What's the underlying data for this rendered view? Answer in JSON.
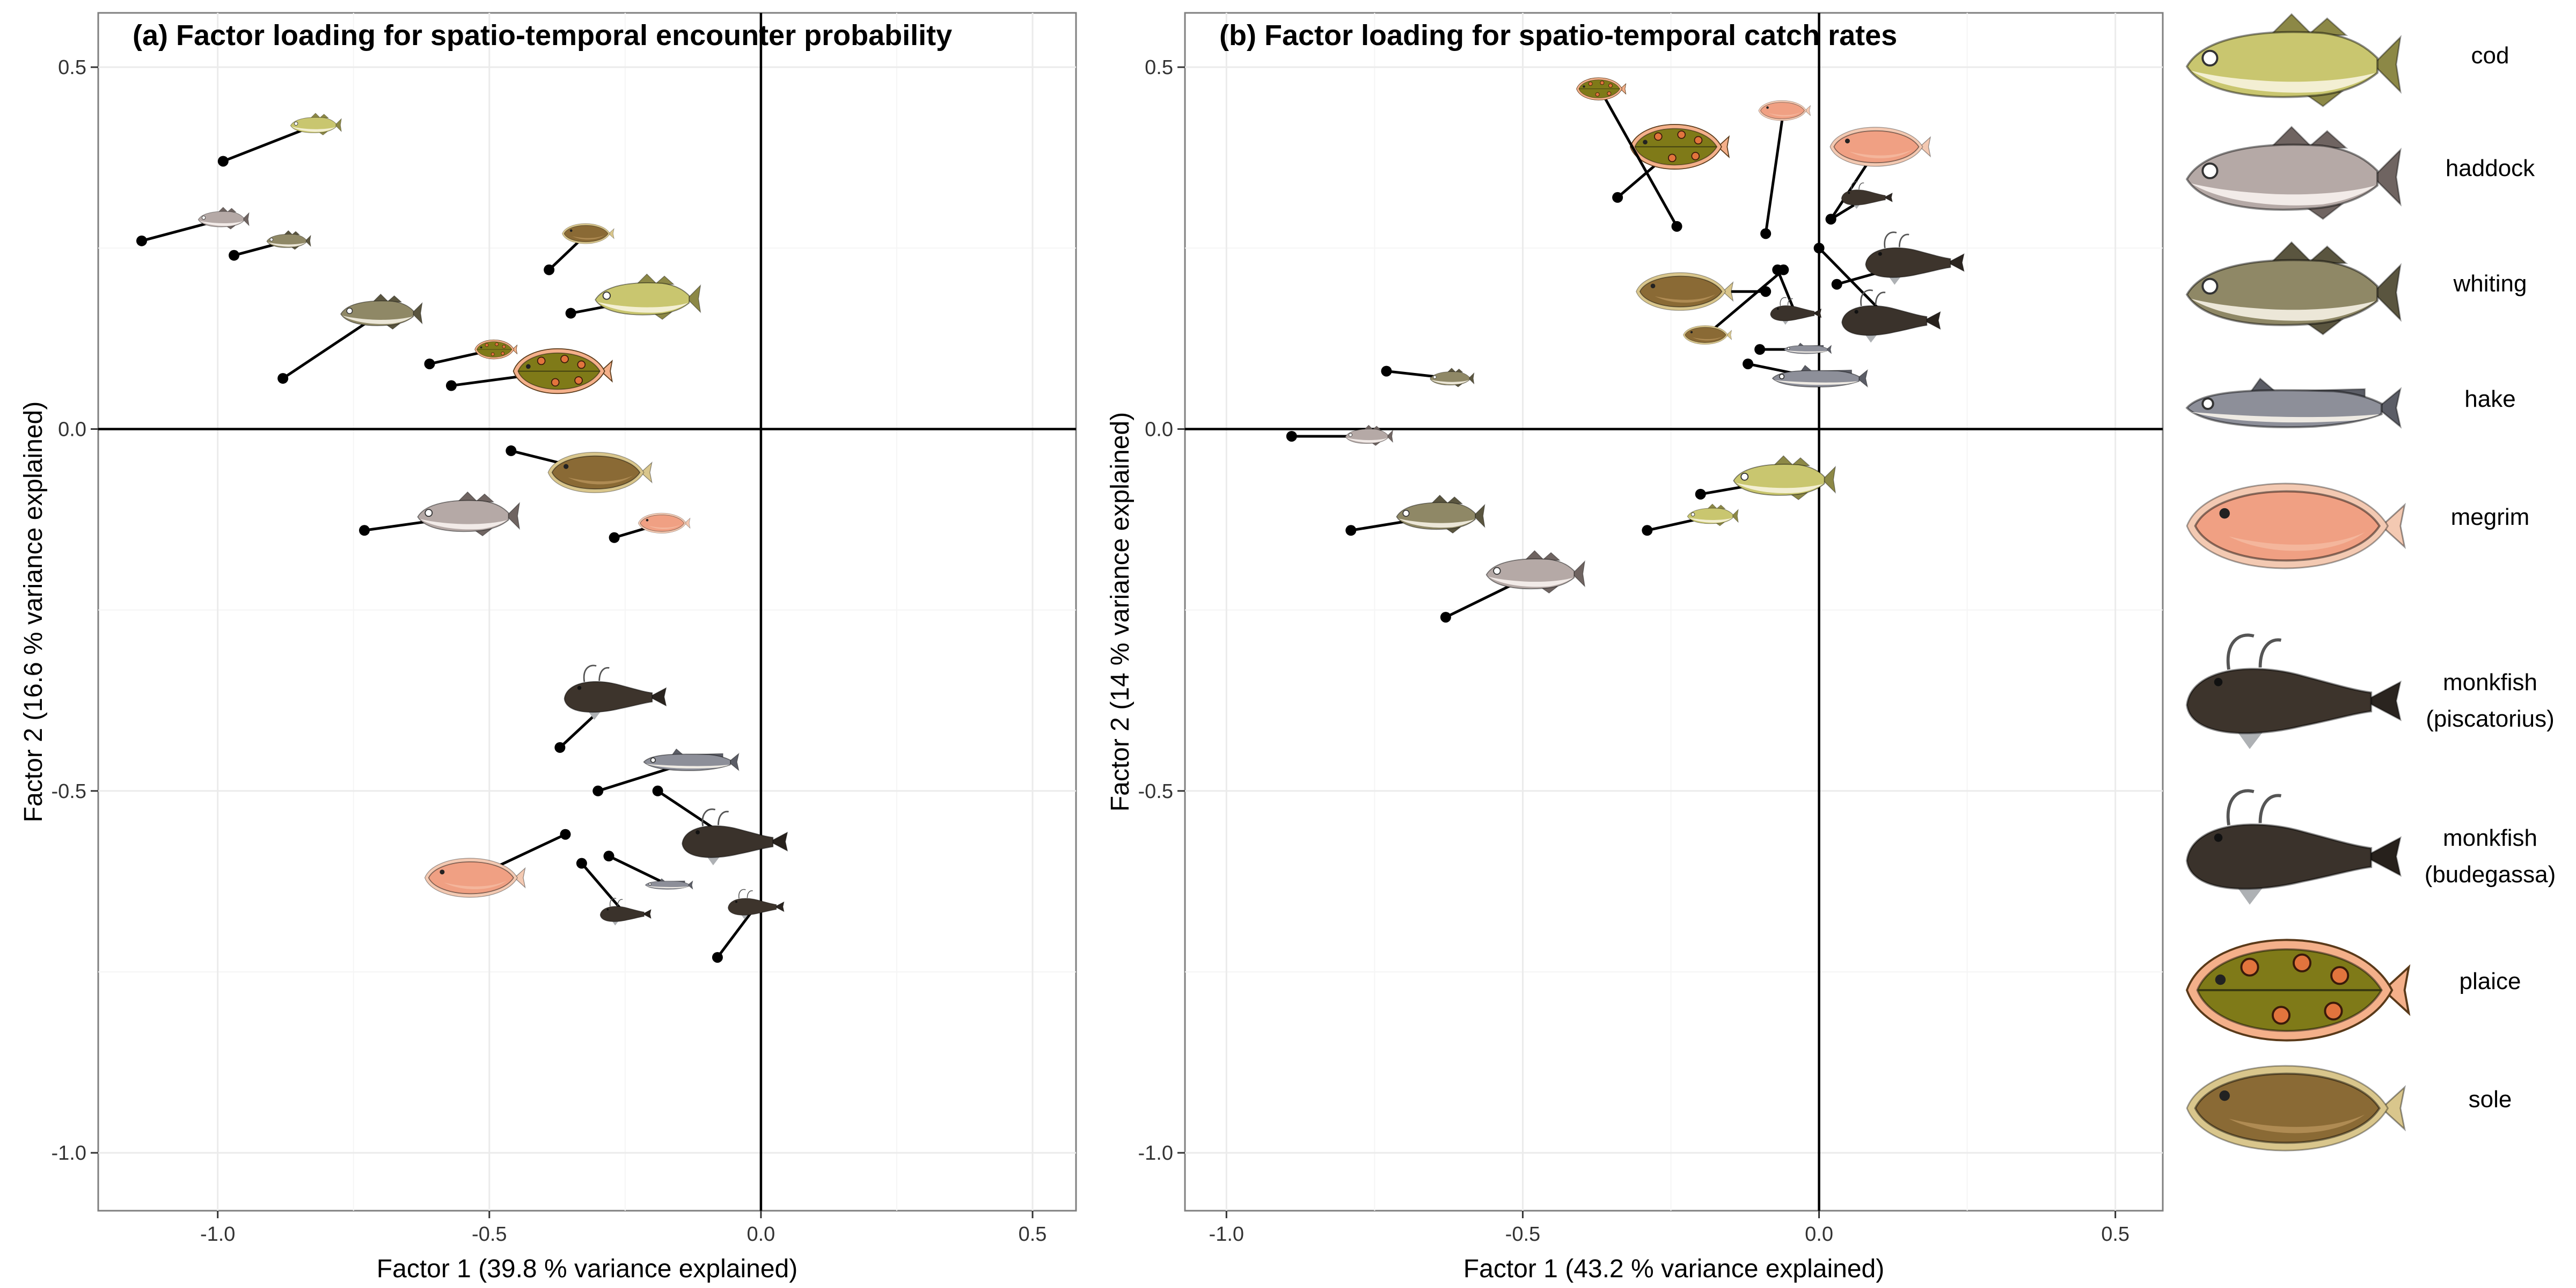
{
  "species": [
    {
      "key": "cod",
      "label": "cod",
      "label2": "",
      "color": "#c9c66f",
      "belly": "#f3efd3",
      "fin": "#8c8846",
      "kind": "round"
    },
    {
      "key": "haddock",
      "label": "haddock",
      "label2": "",
      "color": "#b5a9a6",
      "belly": "#f2ebe8",
      "fin": "#6f6461",
      "kind": "round"
    },
    {
      "key": "whiting",
      "label": "whiting",
      "label2": "",
      "color": "#8f8866",
      "belly": "#ece7d8",
      "fin": "#5a553f",
      "kind": "round"
    },
    {
      "key": "hake",
      "label": "hake",
      "label2": "",
      "color": "#8d8f99",
      "belly": "#eeeae3",
      "fin": "#5b5d66",
      "kind": "slender"
    },
    {
      "key": "megrim",
      "label": "megrim",
      "label2": "",
      "color": "#f0a083",
      "belly": "#f7c4ae",
      "fin": "#f3c9b2",
      "kind": "flat"
    },
    {
      "key": "monk_pisc",
      "label": "monkfish",
      "label2": "(piscatorius)",
      "color": "#3d342c",
      "belly": "#aeb1b4",
      "fin": "#2a241f",
      "kind": "monk"
    },
    {
      "key": "monk_bude",
      "label": "monkfish",
      "label2": "(budegassa)",
      "color": "#3a322b",
      "belly": "#aeb1b4",
      "fin": "#27211c",
      "kind": "monk"
    },
    {
      "key": "plaice",
      "label": "plaice",
      "label2": "",
      "color": "#7f7a18",
      "belly": "#e2743d",
      "fin": "#f4b08a",
      "kind": "plaice"
    },
    {
      "key": "sole",
      "label": "sole",
      "label2": "",
      "color": "#8a6a35",
      "belly": "#c8a267",
      "fin": "#d9c68c",
      "kind": "flat"
    }
  ],
  "panels": [
    {
      "id": "a",
      "title": "(a) Factor loading for spatio-temporal encounter probability",
      "xlabel": "Factor 1 (39.8 % variance explained)",
      "ylabel": "Factor 2 (16.6 % variance explained)",
      "xlim": [
        -1.22,
        0.58
      ],
      "ylim": [
        -1.08,
        0.575
      ],
      "xticks": [
        {
          "v": -1.0,
          "label": "-1.0"
        },
        {
          "v": -0.5,
          "label": "-0.5"
        },
        {
          "v": 0.0,
          "label": "0.0"
        },
        {
          "v": 0.5,
          "label": "0.5"
        }
      ],
      "yticks": [
        {
          "v": 0.5,
          "label": "0.5"
        },
        {
          "v": 0.0,
          "label": "0.0"
        },
        {
          "v": -0.5,
          "label": "-0.5"
        },
        {
          "v": -1.0,
          "label": "-1.0"
        }
      ],
      "points": [
        {
          "species": "cod",
          "x": -0.35,
          "y": 0.16,
          "ix": -0.21,
          "iy": 0.18,
          "s": 0.62
        },
        {
          "species": "cod",
          "x": -0.99,
          "y": 0.37,
          "ix": -0.82,
          "iy": 0.42,
          "s": 0.3
        },
        {
          "species": "haddock",
          "x": -0.73,
          "y": -0.14,
          "ix": -0.54,
          "iy": -0.12,
          "s": 0.6
        },
        {
          "species": "haddock",
          "x": -1.14,
          "y": 0.26,
          "ix": -0.99,
          "iy": 0.29,
          "s": 0.3
        },
        {
          "species": "whiting",
          "x": -0.88,
          "y": 0.07,
          "ix": -0.7,
          "iy": 0.16,
          "s": 0.48
        },
        {
          "species": "whiting",
          "x": -0.97,
          "y": 0.24,
          "ix": -0.87,
          "iy": 0.26,
          "s": 0.26
        },
        {
          "species": "hake",
          "x": -0.3,
          "y": -0.5,
          "ix": -0.13,
          "iy": -0.46,
          "s": 0.56
        },
        {
          "species": "hake",
          "x": -0.28,
          "y": -0.59,
          "ix": -0.17,
          "iy": -0.63,
          "s": 0.28
        },
        {
          "species": "megrim",
          "x": -0.36,
          "y": -0.56,
          "ix": -0.53,
          "iy": -0.62,
          "s": 0.58
        },
        {
          "species": "megrim",
          "x": -0.27,
          "y": -0.15,
          "ix": -0.18,
          "iy": -0.13,
          "s": 0.3
        },
        {
          "species": "monk_pisc",
          "x": -0.37,
          "y": -0.44,
          "ix": -0.27,
          "iy": -0.37,
          "s": 0.6
        },
        {
          "species": "monk_pisc",
          "x": -0.08,
          "y": -0.73,
          "ix": -0.01,
          "iy": -0.66,
          "s": 0.33
        },
        {
          "species": "monk_bude",
          "x": -0.19,
          "y": -0.5,
          "ix": -0.05,
          "iy": -0.57,
          "s": 0.62
        },
        {
          "species": "monk_bude",
          "x": -0.33,
          "y": -0.6,
          "ix": -0.25,
          "iy": -0.67,
          "s": 0.3
        },
        {
          "species": "plaice",
          "x": -0.57,
          "y": 0.06,
          "ix": -0.37,
          "iy": 0.08,
          "s": 0.56
        },
        {
          "species": "plaice",
          "x": -0.61,
          "y": 0.09,
          "ix": -0.49,
          "iy": 0.11,
          "s": 0.24
        },
        {
          "species": "sole",
          "x": -0.46,
          "y": -0.03,
          "ix": -0.3,
          "iy": -0.06,
          "s": 0.6
        },
        {
          "species": "sole",
          "x": -0.39,
          "y": 0.22,
          "ix": -0.32,
          "iy": 0.27,
          "s": 0.3
        }
      ]
    },
    {
      "id": "b",
      "title": "(b) Factor loading for spatio-temporal catch rates",
      "xlabel": "Factor 1 (43.2 % variance explained)",
      "ylabel": "Factor 2 (14 % variance explained)",
      "xlim": [
        -1.07,
        0.58
      ],
      "ylim": [
        -1.08,
        0.575
      ],
      "xticks": [
        {
          "v": -1.0,
          "label": "-1.0"
        },
        {
          "v": -0.5,
          "label": "-0.5"
        },
        {
          "v": 0.0,
          "label": "0.0"
        },
        {
          "v": 0.5,
          "label": "0.5"
        }
      ],
      "yticks": [
        {
          "v": 0.5,
          "label": "0.5"
        },
        {
          "v": 0.0,
          "label": "0.0"
        },
        {
          "v": -0.5,
          "label": "-0.5"
        },
        {
          "v": -1.0,
          "label": "-1.0"
        }
      ],
      "points": [
        {
          "species": "cod",
          "x": -0.2,
          "y": -0.09,
          "ix": -0.06,
          "iy": -0.07,
          "s": 0.6
        },
        {
          "species": "cod",
          "x": -0.29,
          "y": -0.14,
          "ix": -0.18,
          "iy": -0.12,
          "s": 0.3
        },
        {
          "species": "haddock",
          "x": -0.63,
          "y": -0.26,
          "ix": -0.48,
          "iy": -0.2,
          "s": 0.58
        },
        {
          "species": "haddock",
          "x": -0.89,
          "y": -0.01,
          "ix": -0.76,
          "iy": -0.01,
          "s": 0.28
        },
        {
          "species": "whiting",
          "x": -0.79,
          "y": -0.14,
          "ix": -0.64,
          "iy": -0.12,
          "s": 0.52
        },
        {
          "species": "whiting",
          "x": -0.73,
          "y": 0.08,
          "ix": -0.62,
          "iy": 0.07,
          "s": 0.26
        },
        {
          "species": "hake",
          "x": -0.12,
          "y": 0.09,
          "ix": 0.0,
          "iy": 0.07,
          "s": 0.56
        },
        {
          "species": "hake",
          "x": -0.1,
          "y": 0.11,
          "ix": -0.02,
          "iy": 0.11,
          "s": 0.28
        },
        {
          "species": "megrim",
          "x": 0.02,
          "y": 0.29,
          "ix": 0.1,
          "iy": 0.39,
          "s": 0.58
        },
        {
          "species": "megrim",
          "x": -0.09,
          "y": 0.27,
          "ix": -0.06,
          "iy": 0.44,
          "s": 0.3
        },
        {
          "species": "monk_pisc",
          "x": 0.03,
          "y": 0.2,
          "ix": 0.16,
          "iy": 0.23,
          "s": 0.58
        },
        {
          "species": "monk_pisc",
          "x": 0.02,
          "y": 0.29,
          "ix": 0.08,
          "iy": 0.32,
          "s": 0.3
        },
        {
          "species": "monk_bude",
          "x": 0.0,
          "y": 0.25,
          "ix": 0.12,
          "iy": 0.15,
          "s": 0.58
        },
        {
          "species": "monk_bude",
          "x": -0.07,
          "y": 0.22,
          "ix": -0.04,
          "iy": 0.16,
          "s": 0.3
        },
        {
          "species": "plaice",
          "x": -0.34,
          "y": 0.32,
          "ix": -0.24,
          "iy": 0.39,
          "s": 0.56
        },
        {
          "species": "plaice",
          "x": -0.24,
          "y": 0.28,
          "ix": -0.37,
          "iy": 0.47,
          "s": 0.28
        },
        {
          "species": "sole",
          "x": -0.09,
          "y": 0.19,
          "ix": -0.23,
          "iy": 0.19,
          "s": 0.56
        },
        {
          "species": "sole",
          "x": -0.06,
          "y": 0.22,
          "ix": -0.19,
          "iy": 0.13,
          "s": 0.28
        }
      ]
    }
  ],
  "chart_data": [
    {
      "type": "scatter",
      "title": "(a) Factor loading for spatio-temporal encounter probability",
      "xlabel": "Factor 1 (39.8 % variance explained)",
      "ylabel": "Factor 2 (16.6 % variance explained)",
      "xlim": [
        -1.22,
        0.58
      ],
      "ylim": [
        -1.08,
        0.575
      ],
      "grid": true,
      "legend": "right",
      "series": [
        {
          "name": "cod",
          "points": [
            [
              -0.35,
              0.16
            ],
            [
              -0.99,
              0.37
            ]
          ]
        },
        {
          "name": "haddock",
          "points": [
            [
              -0.73,
              -0.14
            ],
            [
              -1.14,
              0.26
            ]
          ]
        },
        {
          "name": "whiting",
          "points": [
            [
              -0.88,
              0.07
            ],
            [
              -0.97,
              0.24
            ]
          ]
        },
        {
          "name": "hake",
          "points": [
            [
              -0.3,
              -0.5
            ],
            [
              -0.28,
              -0.59
            ]
          ]
        },
        {
          "name": "megrim",
          "points": [
            [
              -0.36,
              -0.56
            ],
            [
              -0.27,
              -0.15
            ]
          ]
        },
        {
          "name": "monkfish (piscatorius)",
          "points": [
            [
              -0.37,
              -0.44
            ],
            [
              -0.08,
              -0.73
            ]
          ]
        },
        {
          "name": "monkfish (budegassa)",
          "points": [
            [
              -0.19,
              -0.5
            ],
            [
              -0.33,
              -0.6
            ]
          ]
        },
        {
          "name": "plaice",
          "points": [
            [
              -0.57,
              0.06
            ],
            [
              -0.61,
              0.09
            ]
          ]
        },
        {
          "name": "sole",
          "points": [
            [
              -0.46,
              -0.03
            ],
            [
              -0.39,
              0.22
            ]
          ]
        }
      ]
    },
    {
      "type": "scatter",
      "title": "(b) Factor loading for spatio-temporal catch rates",
      "xlabel": "Factor 1 (43.2 % variance explained)",
      "ylabel": "Factor 2 (14 % variance explained)",
      "xlim": [
        -1.07,
        0.58
      ],
      "ylim": [
        -1.08,
        0.575
      ],
      "grid": true,
      "legend": "right",
      "series": [
        {
          "name": "cod",
          "points": [
            [
              -0.2,
              -0.09
            ],
            [
              -0.29,
              -0.14
            ]
          ]
        },
        {
          "name": "haddock",
          "points": [
            [
              -0.63,
              -0.26
            ],
            [
              -0.89,
              -0.01
            ]
          ]
        },
        {
          "name": "whiting",
          "points": [
            [
              -0.79,
              -0.14
            ],
            [
              -0.73,
              0.08
            ]
          ]
        },
        {
          "name": "hake",
          "points": [
            [
              -0.12,
              0.09
            ],
            [
              -0.1,
              0.11
            ]
          ]
        },
        {
          "name": "megrim",
          "points": [
            [
              0.02,
              0.29
            ],
            [
              -0.09,
              0.27
            ]
          ]
        },
        {
          "name": "monkfish (piscatorius)",
          "points": [
            [
              0.03,
              0.2
            ],
            [
              0.02,
              0.29
            ]
          ]
        },
        {
          "name": "monkfish (budegassa)",
          "points": [
            [
              0.0,
              0.25
            ],
            [
              -0.07,
              0.22
            ]
          ]
        },
        {
          "name": "plaice",
          "points": [
            [
              -0.34,
              0.32
            ],
            [
              -0.24,
              0.28
            ]
          ]
        },
        {
          "name": "sole",
          "points": [
            [
              -0.09,
              0.19
            ],
            [
              -0.06,
              0.22
            ]
          ]
        }
      ]
    }
  ]
}
